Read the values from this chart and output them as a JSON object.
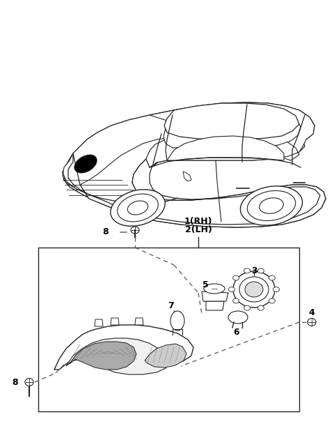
{
  "background_color": "#ffffff",
  "fig_width": 4.8,
  "fig_height": 6.31,
  "dpi": 100,
  "line_color": "#222222",
  "dashed_color": "#555555",
  "gray_light": "#cccccc",
  "gray_med": "#888888",
  "gray_dark": "#444444"
}
